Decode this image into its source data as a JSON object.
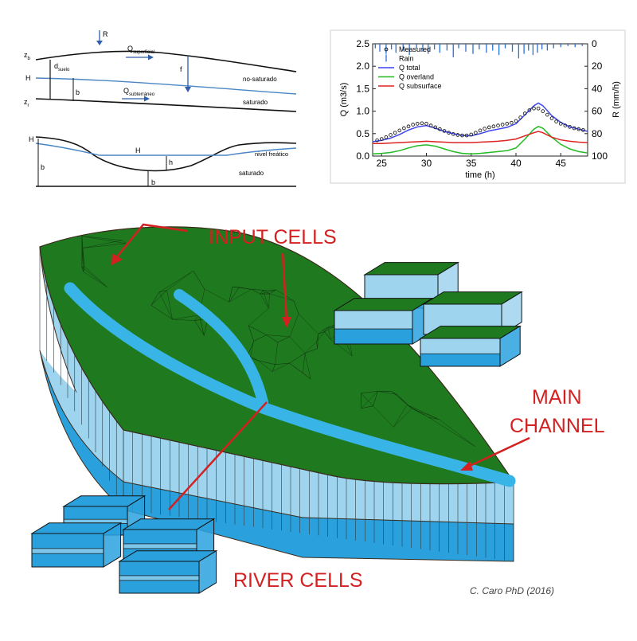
{
  "cross_section": {
    "upper": {
      "labels": {
        "R": "R",
        "zb": "z",
        "zb_sub": "b",
        "H": "H",
        "zr": "z",
        "zr_sub": "r",
        "d": "d",
        "d_sub": "suelo",
        "b": "b",
        "f": "f",
        "q_sup": "Q",
        "q_sup_sub": "superficial",
        "q_sub": "Q",
        "q_sub_sub": "subterráneo",
        "no_saturado": "no-saturado",
        "saturado": "saturado"
      }
    },
    "lower": {
      "labels": {
        "H_left": "H",
        "H_mid": "H",
        "h": "h",
        "b_left": "b",
        "b_bottom": "b",
        "nivel_freatico": "nivel freático",
        "saturado": "saturado"
      }
    }
  },
  "chart_data": {
    "type": "line",
    "xlabel": "time (h)",
    "ylabel": "Q (m3/s)",
    "ylabel_right": "R (mm/h)",
    "xlim": [
      24,
      48
    ],
    "ylim": [
      0,
      2.5
    ],
    "ylim_right_inverted": [
      0,
      100
    ],
    "x_ticks": [
      25,
      30,
      35,
      40,
      45
    ],
    "y_ticks": [
      0.0,
      0.5,
      1.0,
      1.5,
      2.0,
      2.5
    ],
    "y_ticks_right": [
      0,
      20,
      40,
      60,
      80,
      100
    ],
    "legend": [
      "Measured",
      "Rain",
      "Q total",
      "Q overland",
      "Q subsurface"
    ],
    "legend_position": "top-left",
    "colors": {
      "measured": "#222222",
      "rain": "#2a6fd6",
      "q_total": "#3b44f0",
      "q_overland": "#22bb22",
      "q_subsurface": "#dd2222"
    },
    "series": [
      {
        "name": "Q total",
        "x": [
          24,
          25,
          26,
          27,
          28,
          29,
          30,
          31,
          32,
          33,
          34,
          35,
          36,
          37,
          38,
          39,
          40,
          41,
          42,
          42.5,
          43,
          44,
          45,
          46,
          47,
          48
        ],
        "values": [
          0.32,
          0.35,
          0.4,
          0.48,
          0.58,
          0.65,
          0.68,
          0.62,
          0.55,
          0.5,
          0.46,
          0.45,
          0.5,
          0.56,
          0.6,
          0.64,
          0.72,
          0.92,
          1.12,
          1.18,
          1.12,
          0.9,
          0.75,
          0.65,
          0.6,
          0.55
        ]
      },
      {
        "name": "Q overland",
        "x": [
          24,
          25,
          26,
          27,
          28,
          29,
          30,
          31,
          32,
          33,
          34,
          35,
          36,
          37,
          38,
          39,
          40,
          41,
          42,
          42.5,
          43,
          44,
          45,
          46,
          47,
          48
        ],
        "values": [
          0.05,
          0.06,
          0.08,
          0.12,
          0.18,
          0.23,
          0.25,
          0.22,
          0.16,
          0.1,
          0.06,
          0.05,
          0.06,
          0.08,
          0.1,
          0.12,
          0.18,
          0.38,
          0.6,
          0.66,
          0.62,
          0.42,
          0.26,
          0.16,
          0.1,
          0.07
        ]
      },
      {
        "name": "Q subsurface",
        "x": [
          24,
          25,
          26,
          27,
          28,
          29,
          30,
          31,
          32,
          33,
          34,
          35,
          36,
          37,
          38,
          39,
          40,
          41,
          42,
          42.5,
          43,
          44,
          45,
          46,
          47,
          48
        ],
        "values": [
          0.28,
          0.28,
          0.29,
          0.3,
          0.31,
          0.32,
          0.33,
          0.32,
          0.31,
          0.3,
          0.3,
          0.3,
          0.31,
          0.32,
          0.33,
          0.35,
          0.38,
          0.45,
          0.52,
          0.55,
          0.52,
          0.42,
          0.36,
          0.33,
          0.31,
          0.3
        ]
      },
      {
        "name": "Measured",
        "x": [
          24.5,
          25,
          25.5,
          26,
          26.5,
          27,
          27.5,
          28,
          28.5,
          29,
          29.5,
          30,
          30.5,
          31,
          31.5,
          32,
          32.5,
          33,
          33.5,
          34,
          34.5,
          35,
          35.5,
          36,
          36.5,
          37,
          37.5,
          38,
          38.5,
          39,
          39.5,
          40,
          40.5,
          41,
          41.5,
          42,
          42.5,
          43,
          43.5,
          44,
          44.5,
          45,
          45.5,
          46,
          46.5,
          47,
          47.5
        ],
        "values": [
          0.35,
          0.38,
          0.42,
          0.47,
          0.52,
          0.57,
          0.62,
          0.66,
          0.7,
          0.72,
          0.73,
          0.72,
          0.68,
          0.64,
          0.6,
          0.56,
          0.52,
          0.49,
          0.47,
          0.46,
          0.46,
          0.48,
          0.52,
          0.57,
          0.61,
          0.64,
          0.66,
          0.68,
          0.7,
          0.72,
          0.74,
          0.78,
          0.86,
          0.95,
          1.02,
          1.06,
          1.06,
          1.0,
          0.92,
          0.84,
          0.77,
          0.72,
          0.68,
          0.65,
          0.62,
          0.6,
          0.58
        ]
      },
      {
        "name": "Rain",
        "x": [
          24.3,
          24.8,
          25.5,
          26.1,
          26.6,
          27.4,
          28.1,
          28.9,
          29.6,
          30.2,
          30.9,
          31.5,
          32.3,
          33.0,
          33.6,
          34.4,
          35.2,
          35.9,
          36.7,
          37.4,
          38.1,
          38.8,
          39.6,
          40.3,
          40.9,
          41.4,
          41.9,
          42.4,
          42.9,
          43.5,
          44.2,
          45.0,
          45.8,
          46.6,
          47.4
        ],
        "values": [
          4,
          7,
          9,
          5,
          8,
          6,
          10,
          4,
          7,
          9,
          5,
          8,
          6,
          12,
          4,
          7,
          9,
          5,
          8,
          6,
          10,
          4,
          7,
          13,
          9,
          6,
          10,
          8,
          5,
          6,
          4,
          3,
          2,
          3,
          2
        ]
      }
    ]
  },
  "block_3d": {
    "labels": {
      "input_cells": "INPUT CELLS",
      "main_channel_1": "MAIN",
      "main_channel_2": "CHANNEL",
      "river_cells": "RIVER CELLS",
      "credit": "C. Caro PhD (2016)"
    },
    "colors": {
      "surface": "#1f7a1f",
      "channel": "#39b4e6",
      "upper_soil": "#9fd4ee",
      "lower_soil": "#2aa1dd",
      "annotation": "#d42020"
    }
  }
}
